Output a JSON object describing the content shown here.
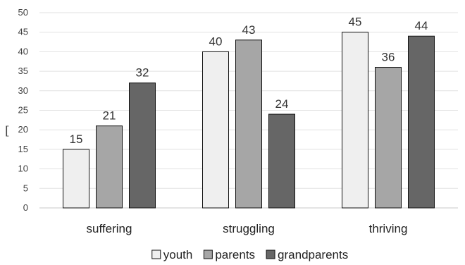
{
  "chart_data": {
    "type": "bar",
    "categories": [
      "suffering",
      "struggling",
      "thriving"
    ],
    "series": [
      {
        "name": "youth",
        "values": [
          15,
          40,
          45
        ],
        "color": "#efefef"
      },
      {
        "name": "parents",
        "values": [
          21,
          43,
          36
        ],
        "color": "#a6a6a6"
      },
      {
        "name": "grandparents",
        "values": [
          32,
          24,
          44
        ],
        "color": "#666666"
      }
    ],
    "ylim": [
      0,
      50
    ],
    "yticks": [
      "0",
      "5",
      "10",
      "15",
      "20",
      "25",
      "30",
      "35",
      "40",
      "45",
      "50"
    ],
    "grid": true,
    "legend": "bottom",
    "title": "",
    "xlabel": "",
    "ylabel": ""
  },
  "stray_mark": "["
}
